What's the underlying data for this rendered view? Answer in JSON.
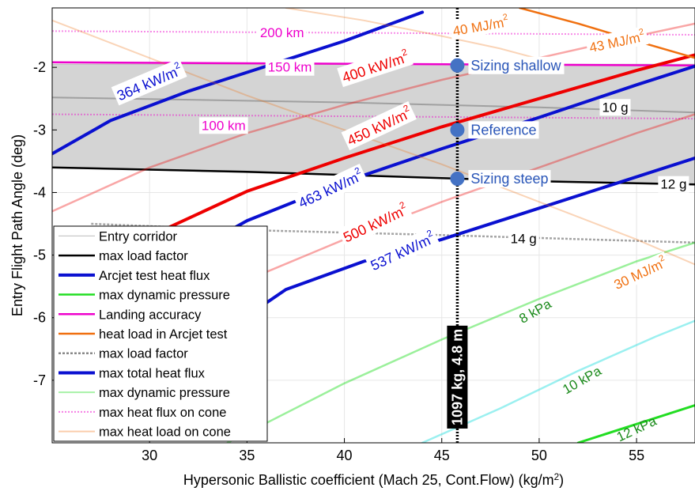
{
  "chart_data": {
    "type": "line",
    "xlabel": "Hypersonic Ballistic coefficient (Mach 25, Cont.Flow) (kg/m²)",
    "ylabel": "Entry Flight Path Angle (deg)",
    "xlim": [
      25,
      58
    ],
    "ylim": [
      -8,
      -1.05
    ],
    "xticks": [
      "30",
      "35",
      "40",
      "45",
      "50",
      "55"
    ],
    "yticks": [
      "-2",
      "-3",
      "-4",
      "-5",
      "-6",
      "-7"
    ],
    "grid": true,
    "legend_placement": "bottom-left",
    "colors": {
      "corridor_fill": "#d4d4d4",
      "black": "#000000",
      "blue": "#0a10d0",
      "green": "#22dd22",
      "magenta": "#ee00cc",
      "orange": "#f07010",
      "red": "#ee0000",
      "gray": "#9a9a9a",
      "point": "#4472c4",
      "label_blue": "#2a56b8",
      "label_green": "#1a8a1a"
    },
    "legend": [
      {
        "label": "Entry corridor",
        "color": "#bbbbbb",
        "width": 1,
        "dash": "",
        "opacity": 1
      },
      {
        "label": "max load factor",
        "color": "#000000",
        "width": 2.5,
        "dash": "",
        "opacity": 1
      },
      {
        "label": "Arcjet test heat flux",
        "color": "#0a10d0",
        "width": 4,
        "dash": "",
        "opacity": 1
      },
      {
        "label": "max dynamic pressure",
        "color": "#22dd22",
        "width": 2.5,
        "dash": "",
        "opacity": 1
      },
      {
        "label": "Landing accuracy",
        "color": "#ee00cc",
        "width": 2.5,
        "dash": "",
        "opacity": 1
      },
      {
        "label": "heat load in Arcjet test",
        "color": "#f07010",
        "width": 2.5,
        "dash": "",
        "opacity": 1
      },
      {
        "label": "max load factor",
        "color": "#888888",
        "width": 2.5,
        "dash": "3 2",
        "opacity": 1
      },
      {
        "label": "max total heat flux",
        "color": "#0a10d0",
        "width": 4,
        "dash": "",
        "opacity": 1
      },
      {
        "label": "max dynamic pressure",
        "color": "#22dd22",
        "width": 2,
        "dash": "",
        "opacity": 0.4
      },
      {
        "label": "max heat flux on cone",
        "color": "#ee00cc",
        "width": 2,
        "dash": "2 2",
        "opacity": 0.5
      },
      {
        "label": "max heat load on cone",
        "color": "#f07010",
        "width": 2,
        "dash": "",
        "opacity": 0.35
      }
    ],
    "series": [
      {
        "name": "Entry corridor",
        "kind": "band",
        "x": [
          25,
          58
        ],
        "upper": [
          -1.95,
          -1.95
        ],
        "lower": [
          -3.6,
          -3.87
        ]
      },
      {
        "name": "max load factor",
        "kind": "line",
        "color": "black",
        "width": 2.5,
        "opacity": 1,
        "dash": "",
        "x": [
          25,
          35,
          45,
          50,
          58
        ],
        "y": [
          -3.6,
          -3.67,
          -3.77,
          -3.82,
          -3.87
        ]
      },
      {
        "name": "max load factor",
        "kind": "line",
        "color": "gray",
        "width": 2,
        "opacity": 0.9,
        "dash": "",
        "x": [
          25,
          40,
          50,
          58
        ],
        "y": [
          -2.48,
          -2.56,
          -2.64,
          -2.72
        ]
      },
      {
        "name": "max load factor",
        "kind": "line",
        "color": "gray",
        "width": 2.5,
        "opacity": 0.9,
        "dash": "3 2",
        "x": [
          27,
          35,
          45,
          58
        ],
        "y": [
          -4.5,
          -4.6,
          -4.68,
          -4.8
        ]
      },
      {
        "name": "Landing accuracy",
        "kind": "line",
        "color": "magenta",
        "width": 2.5,
        "opacity": 1,
        "dash": "",
        "x": [
          25,
          58
        ],
        "y": [
          -1.92,
          -1.97
        ]
      },
      {
        "name": "max heat flux on cone",
        "kind": "line",
        "color": "magenta",
        "width": 2,
        "opacity": 0.45,
        "dash": "2 2",
        "x": [
          25,
          58
        ],
        "y": [
          -1.42,
          -1.48
        ]
      },
      {
        "name": "max heat flux on cone",
        "kind": "line",
        "color": "magenta",
        "width": 2,
        "opacity": 0.45,
        "dash": "2 2",
        "x": [
          25,
          58
        ],
        "y": [
          -2.75,
          -2.82
        ]
      },
      {
        "name": "max total heat flux",
        "kind": "line",
        "color": "blue",
        "width": 4,
        "opacity": 1,
        "dash": "",
        "x": [
          25,
          28,
          32,
          36,
          40,
          44
        ],
        "y": [
          -3.38,
          -2.85,
          -2.38,
          -1.98,
          -1.58,
          -1.12
        ]
      },
      {
        "name": "max total heat flux",
        "kind": "line",
        "color": "red",
        "width": 2.5,
        "opacity": 0.35,
        "dash": "",
        "x": [
          25,
          30,
          35,
          40,
          45,
          50,
          55,
          58
        ],
        "y": [
          -4.3,
          -3.6,
          -3.05,
          -2.6,
          -2.2,
          -1.85,
          -1.5,
          -1.3
        ]
      },
      {
        "name": "max total heat flux",
        "kind": "line",
        "color": "red",
        "width": 4,
        "opacity": 1,
        "dash": "",
        "x": [
          26.5,
          30,
          35,
          40,
          45,
          50,
          55,
          58
        ],
        "y": [
          -5.45,
          -4.7,
          -3.98,
          -3.45,
          -2.95,
          -2.5,
          -2.05,
          -1.8
        ]
      },
      {
        "name": "Arcjet test heat flux",
        "kind": "line",
        "color": "blue",
        "width": 4,
        "opacity": 1,
        "dash": "",
        "x": [
          28,
          31,
          35,
          40,
          45,
          50,
          55,
          58
        ],
        "y": [
          -5.95,
          -5.15,
          -4.45,
          -3.83,
          -3.3,
          -2.8,
          -2.28,
          -1.98
        ]
      },
      {
        "name": "max total heat flux",
        "kind": "line",
        "color": "red",
        "width": 2.5,
        "opacity": 0.35,
        "dash": "",
        "x": [
          30,
          35,
          40,
          45,
          50,
          55,
          58
        ],
        "y": [
          -6.2,
          -5.4,
          -4.75,
          -4.15,
          -3.6,
          -3.05,
          -2.75
        ]
      },
      {
        "name": "Arcjet test heat flux",
        "kind": "line",
        "color": "blue",
        "width": 4,
        "opacity": 1,
        "dash": "",
        "x": [
          33,
          37,
          41,
          45,
          49,
          53,
          58
        ],
        "y": [
          -6.4,
          -5.55,
          -5.1,
          -4.75,
          -4.35,
          -3.95,
          -3.45
        ]
      },
      {
        "name": "max dynamic pressure",
        "kind": "line",
        "color": "green",
        "width": 2.5,
        "opacity": 0.45,
        "dash": "",
        "x": [
          34,
          40,
          45,
          50,
          55,
          58
        ],
        "y": [
          -8,
          -7.05,
          -6.35,
          -5.7,
          -5.1,
          -4.8
        ]
      },
      {
        "name": "max dynamic pressure",
        "kind": "line",
        "color": "cyan",
        "width": 2.5,
        "opacity": 0.45,
        "dash": "",
        "x": [
          44,
          48,
          52,
          56,
          58
        ],
        "y": [
          -8,
          -7.45,
          -6.85,
          -6.3,
          -6.05
        ]
      },
      {
        "name": "max dynamic pressure",
        "kind": "line",
        "color": "green",
        "width": 3,
        "opacity": 1,
        "dash": "",
        "x": [
          52,
          55,
          58
        ],
        "y": [
          -8,
          -7.7,
          -7.4
        ]
      },
      {
        "name": "heat load in Arcjet test",
        "kind": "line",
        "color": "orange",
        "width": 2.5,
        "opacity": 1,
        "dash": "",
        "x": [
          49,
          52,
          55,
          58
        ],
        "y": [
          -1.05,
          -1.3,
          -1.58,
          -1.85
        ]
      },
      {
        "name": "max heat load on cone",
        "kind": "line",
        "color": "orange",
        "width": 2,
        "opacity": 0.3,
        "dash": "",
        "x": [
          25,
          30,
          35,
          40,
          45,
          50,
          55,
          58
        ],
        "y": [
          -1.25,
          -1.85,
          -2.45,
          -3.0,
          -3.55,
          -4.15,
          -4.75,
          -5.15
        ]
      },
      {
        "name": "max heat load on cone",
        "kind": "line",
        "color": "orange",
        "width": 2,
        "opacity": 0.3,
        "dash": "",
        "x": [
          37,
          41,
          45,
          48,
          51
        ],
        "y": [
          -1.05,
          -1.25,
          -1.5,
          -1.7,
          -1.95
        ]
      }
    ],
    "reference_line": {
      "x": 45.8,
      "color": "black",
      "width": 3.5,
      "dash": "2 2"
    },
    "points": [
      {
        "x": 45.8,
        "y": -1.97,
        "label": "Sizing shallow"
      },
      {
        "x": 45.8,
        "y": -3.0,
        "label": "Reference"
      },
      {
        "x": 45.8,
        "y": -3.78,
        "label": "Sizing steep"
      }
    ],
    "vertical_label": {
      "text": "1097 kg, 4.8 m",
      "x": 45.8,
      "y": -6.95
    },
    "annotations": [
      {
        "text": "200 km",
        "x": 36.8,
        "y": -1.45,
        "angle": 0,
        "color": "magenta",
        "box": true,
        "size": 17
      },
      {
        "text": "150 km",
        "x": 37.2,
        "y": -2.0,
        "angle": 0,
        "color": "magenta",
        "box": true,
        "size": 17
      },
      {
        "text": "100 km",
        "x": 33.8,
        "y": -2.93,
        "angle": 0,
        "color": "magenta",
        "box": true,
        "size": 17
      },
      {
        "text": "10 g",
        "x": 53.9,
        "y": -2.64,
        "angle": 0,
        "color": "black",
        "box": true,
        "size": 17
      },
      {
        "text": "12 g",
        "x": 56.9,
        "y": -3.87,
        "angle": 0,
        "color": "black",
        "box": true,
        "size": 17
      },
      {
        "text": "14 g",
        "x": 49.2,
        "y": -4.74,
        "angle": 0,
        "color": "black",
        "box": true,
        "size": 17
      },
      {
        "text": "364 kW/m²",
        "x": 30.0,
        "y": -2.25,
        "angle": -23,
        "color": "blue",
        "box": true,
        "size": 18
      },
      {
        "text": "400 kW/m²",
        "x": 41.6,
        "y": -2.0,
        "angle": -18,
        "color": "red",
        "box": true,
        "size": 18
      },
      {
        "text": "450 kW/m²",
        "x": 41.8,
        "y": -2.95,
        "angle": -25,
        "color": "red",
        "box": true,
        "size": 18
      },
      {
        "text": "463 kW/m²",
        "x": 39.3,
        "y": -3.95,
        "angle": -25,
        "color": "blue",
        "box": true,
        "size": 18
      },
      {
        "text": "500 kW/m²",
        "x": 41.6,
        "y": -4.5,
        "angle": -25,
        "color": "red",
        "box": true,
        "size": 18
      },
      {
        "text": "537 kW/m²",
        "x": 43.0,
        "y": -4.95,
        "angle": -25,
        "color": "blue",
        "box": true,
        "size": 18
      },
      {
        "text": "40 MJ/m²",
        "x": 47.0,
        "y": -1.35,
        "angle": -10,
        "color": "orange",
        "box": true,
        "size": 17
      },
      {
        "text": "43 MJ/m²",
        "x": 54.0,
        "y": -1.6,
        "angle": -12,
        "color": "orange",
        "box": true,
        "size": 17
      },
      {
        "text": "30 MJ/m²",
        "x": 55.2,
        "y": -5.3,
        "angle": -25,
        "color": "orange",
        "box": true,
        "size": 17
      },
      {
        "text": "8 kPa",
        "x": 49.8,
        "y": -5.9,
        "angle": -30,
        "color": "label_green",
        "box": false,
        "size": 17
      },
      {
        "text": "10 kPa",
        "x": 52.2,
        "y": -7.0,
        "angle": -30,
        "color": "label_green",
        "box": false,
        "size": 17
      },
      {
        "text": "12 kPa",
        "x": 55.0,
        "y": -7.78,
        "angle": -25,
        "color": "label_green",
        "box": false,
        "size": 17
      }
    ]
  }
}
